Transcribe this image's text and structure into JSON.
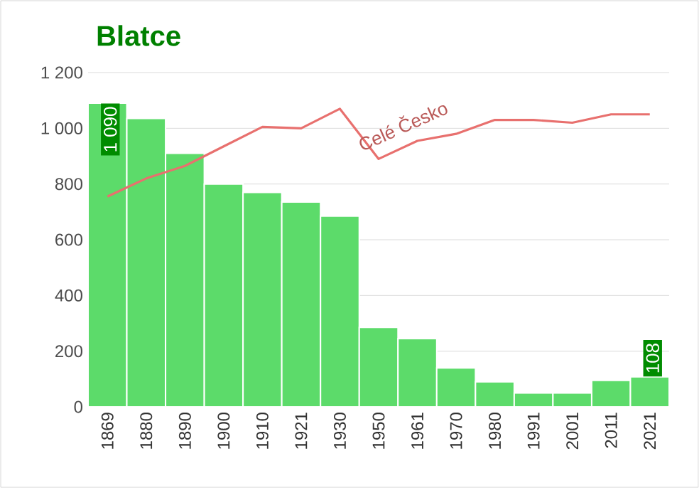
{
  "chart_data": {
    "type": "bar",
    "title": "Blatce",
    "categories": [
      "1869",
      "1880",
      "1890",
      "1900",
      "1910",
      "1921",
      "1930",
      "1950",
      "1961",
      "1970",
      "1980",
      "1991",
      "2001",
      "2011",
      "2021"
    ],
    "series": [
      {
        "type": "bar",
        "color": "#5cdb6a",
        "values": [
          1090,
          1035,
          910,
          800,
          770,
          735,
          685,
          285,
          245,
          140,
          90,
          50,
          50,
          95,
          108
        ],
        "value_labels": [
          "1 090",
          null,
          null,
          null,
          null,
          null,
          null,
          null,
          null,
          null,
          null,
          null,
          null,
          null,
          "108"
        ]
      },
      {
        "type": "line",
        "name": "Celé Česko",
        "color": "#e8706e",
        "values": [
          755,
          820,
          865,
          935,
          1005,
          1000,
          1070,
          890,
          955,
          980,
          1030,
          1030,
          1020,
          1050,
          1050
        ]
      }
    ],
    "ylim": [
      0,
      1200
    ],
    "yticks": [
      0,
      200,
      400,
      600,
      800,
      {
        "value": 1000,
        "label": "1 000"
      },
      {
        "value": 1200,
        "label": "1 200"
      }
    ],
    "grid": "y",
    "legend": false,
    "marker": "none",
    "line_style": "solid"
  }
}
